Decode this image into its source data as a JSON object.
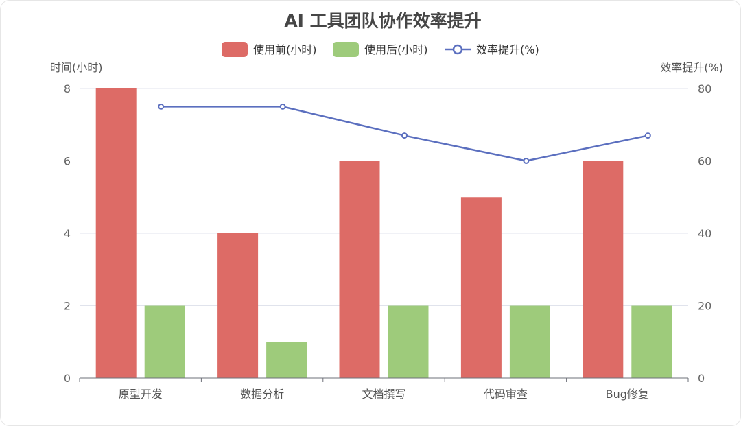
{
  "chart_data": {
    "type": "bar",
    "title": "AI 工具团队协作效率提升",
    "categories": [
      "原型开发",
      "数据分析",
      "文档撰写",
      "代码审查",
      "Bug修复"
    ],
    "series": [
      {
        "name": "使用前(小时)",
        "type": "bar",
        "axis": "left",
        "color": "#dd6b66",
        "values": [
          8,
          4,
          6,
          5,
          6
        ]
      },
      {
        "name": "使用后(小时)",
        "type": "bar",
        "axis": "left",
        "color": "#9ecb7b",
        "values": [
          2,
          1,
          2,
          2,
          2
        ]
      },
      {
        "name": "效率提升(%)",
        "type": "line",
        "axis": "right",
        "color": "#5b6fbf",
        "values": [
          75,
          75,
          67,
          60,
          67
        ]
      }
    ],
    "ylabel": "时间(小时)",
    "ylabel_right": "效率提升(%)",
    "ylim": [
      0,
      8
    ],
    "ylim_right": [
      0,
      80
    ],
    "yticks": [
      "0",
      "2",
      "4",
      "6",
      "8"
    ],
    "yticks_right": [
      "0",
      "20",
      "40",
      "60",
      "80"
    ],
    "grid": true,
    "legend": "top-center"
  }
}
